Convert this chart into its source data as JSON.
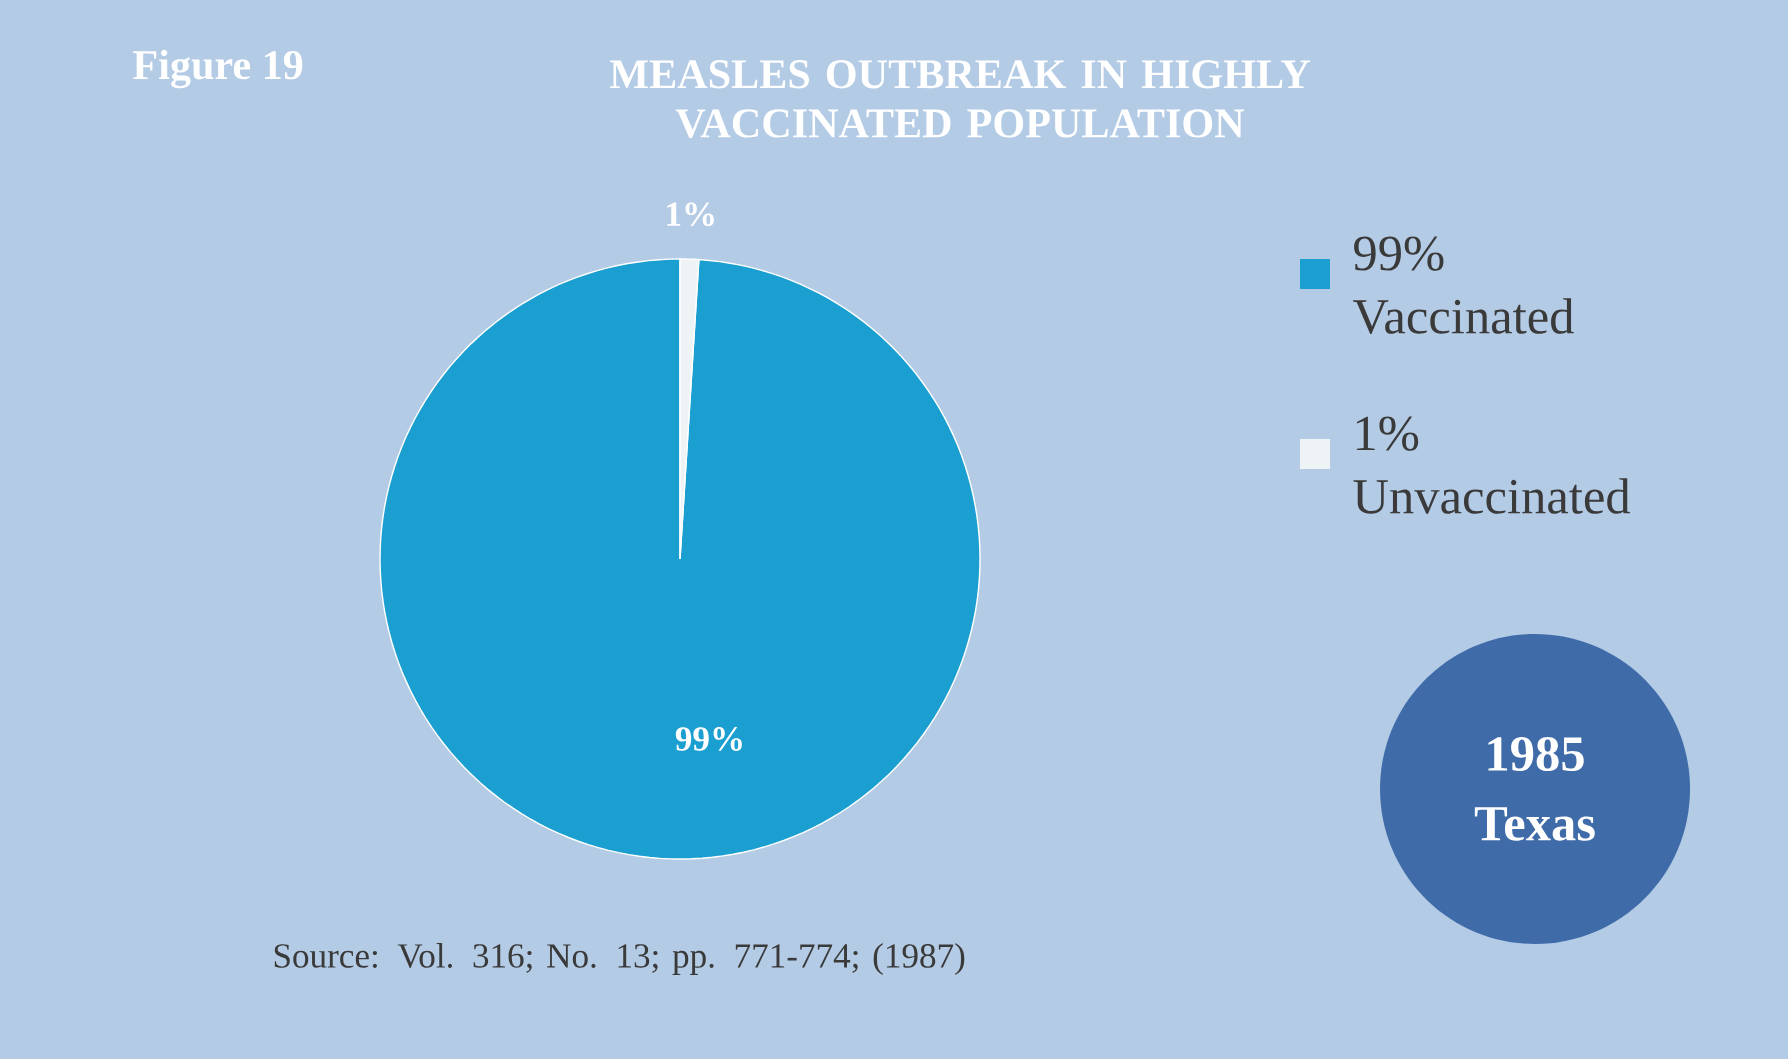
{
  "chart_data": {
    "type": "pie",
    "title": "MEASLES OUTBREAK IN HIGHLY VACCINATED POPULATION",
    "categories": [
      "Vaccinated",
      "Unvaccinated"
    ],
    "values": [
      99,
      1
    ],
    "value_labels": [
      "99%",
      "1%"
    ],
    "colors": [
      "#1a9fd0",
      "#eef3f6"
    ],
    "legend": "right",
    "annotations": [
      "Figure 19",
      "Source: Vol. 316; No. 13; pp. 771-774; (1987)",
      "1985",
      "Texas"
    ]
  }
}
